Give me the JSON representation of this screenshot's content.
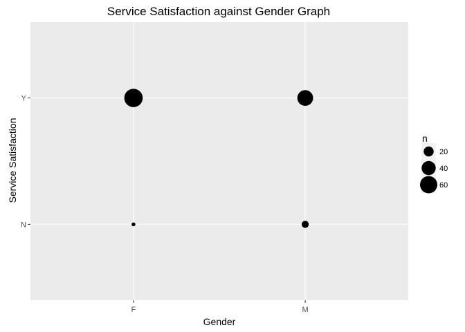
{
  "chart_data": {
    "type": "scatter",
    "title": "Service Satisfaction against Gender Graph",
    "xlabel": "Gender",
    "ylabel": "Service Satisfaction",
    "x_categories": [
      "F",
      "M"
    ],
    "y_categories": [
      "N",
      "Y"
    ],
    "points": [
      {
        "x": "F",
        "y": "Y",
        "n": 68
      },
      {
        "x": "M",
        "y": "Y",
        "n": 50
      },
      {
        "x": "F",
        "y": "N",
        "n": 3
      },
      {
        "x": "M",
        "y": "N",
        "n": 10
      }
    ],
    "size_legend": {
      "title": "n",
      "breaks": [
        20,
        40,
        60
      ],
      "labels": [
        "20",
        "40",
        "60"
      ]
    },
    "grid": true,
    "legend_position": "right",
    "colors": {
      "panel_background": "#ebebeb",
      "grid_line": "#ffffff",
      "point": "#000000",
      "tick_text": "#4d4d4d"
    }
  }
}
